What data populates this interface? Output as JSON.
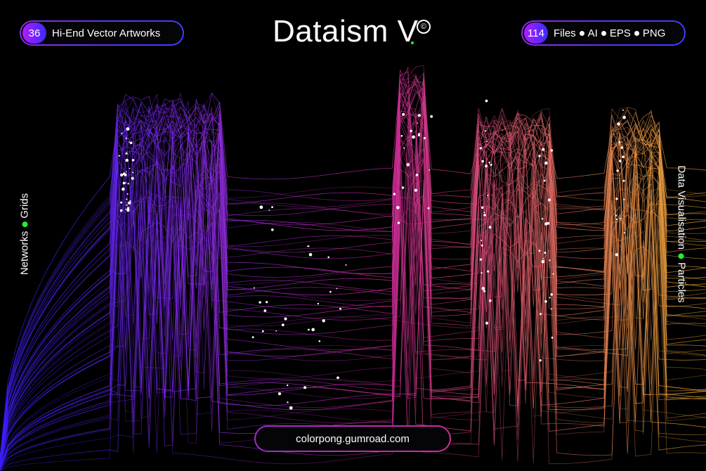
{
  "header": {
    "title": "Dataism V",
    "copyright_symbol": "©",
    "left_pill": {
      "count": "36",
      "label": "Hi-End Vector Artworks"
    },
    "right_pill": {
      "count": "114",
      "formats": [
        "Files",
        "AI",
        "EPS",
        "PNG"
      ]
    }
  },
  "side_labels": {
    "left": [
      "Networks",
      "Grids"
    ],
    "right": [
      "Data Visualisation",
      "Particles"
    ]
  },
  "footer": {
    "url": "colorpong.gumroad.com"
  },
  "colors": {
    "background": "#000000",
    "accent_green": "#22ee33",
    "gradient_start": "#5a2bff",
    "gradient_mid": "#d02b9a",
    "gradient_end": "#f0b030"
  }
}
